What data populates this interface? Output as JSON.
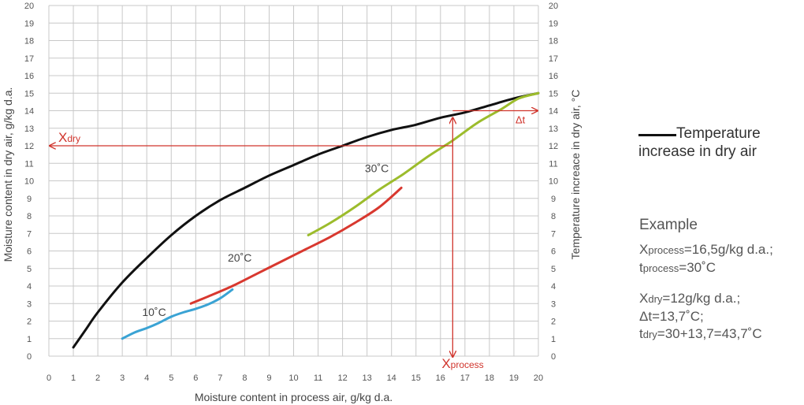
{
  "chart_data": {
    "type": "line",
    "xlabel": "Moisture content in process air, g/kg d.a.",
    "ylabel": "Moisture content in dry air, g/kg d.a.",
    "y2label": "Temperature increace in dry air, °C",
    "xlim": [
      0,
      20
    ],
    "ylim": [
      0,
      20
    ],
    "y2lim": [
      0,
      20
    ],
    "x_ticks": [
      "0",
      "1",
      "2",
      "3",
      "4",
      "5",
      "6",
      "7",
      "8",
      "9",
      "10",
      "11",
      "12",
      "13",
      "14",
      "15",
      "16",
      "17",
      "18",
      "19",
      "20"
    ],
    "y_ticks": [
      "0",
      "1",
      "2",
      "3",
      "4",
      "5",
      "6",
      "7",
      "8",
      "9",
      "10",
      "11",
      "12",
      "13",
      "14",
      "15",
      "16",
      "17",
      "18",
      "19",
      "20"
    ],
    "grid": true,
    "legend_position": "right",
    "series": [
      {
        "name": "Temperature increase in dry air",
        "axis": "right",
        "color": "#111111",
        "points": [
          [
            1,
            0.5
          ],
          [
            1.5,
            1.5
          ],
          [
            2,
            2.5
          ],
          [
            3,
            4.2
          ],
          [
            4,
            5.6
          ],
          [
            5,
            6.9
          ],
          [
            6,
            8.0
          ],
          [
            7,
            8.9
          ],
          [
            8,
            9.6
          ],
          [
            9,
            10.3
          ],
          [
            10,
            10.9
          ],
          [
            11,
            11.5
          ],
          [
            12,
            12.0
          ],
          [
            13,
            12.5
          ],
          [
            14,
            12.9
          ],
          [
            15,
            13.2
          ],
          [
            16,
            13.6
          ],
          [
            17,
            13.9
          ],
          [
            18,
            14.3
          ],
          [
            19,
            14.7
          ],
          [
            20,
            15.0
          ]
        ]
      },
      {
        "name": "10°C",
        "axis": "left",
        "color": "#3aa3d4",
        "points": [
          [
            3,
            1.0
          ],
          [
            3.5,
            1.35
          ],
          [
            4,
            1.6
          ],
          [
            4.5,
            1.9
          ],
          [
            5,
            2.25
          ],
          [
            5.5,
            2.5
          ],
          [
            6,
            2.7
          ],
          [
            6.5,
            2.95
          ],
          [
            7,
            3.3
          ],
          [
            7.5,
            3.8
          ]
        ]
      },
      {
        "name": "20°C",
        "axis": "left",
        "color": "#d8382f",
        "points": [
          [
            5.8,
            3.0
          ],
          [
            6.5,
            3.4
          ],
          [
            7.5,
            4.0
          ],
          [
            8.5,
            4.7
          ],
          [
            9.5,
            5.4
          ],
          [
            10.5,
            6.1
          ],
          [
            11.5,
            6.8
          ],
          [
            12.5,
            7.6
          ],
          [
            13.5,
            8.5
          ],
          [
            14.4,
            9.6
          ]
        ]
      },
      {
        "name": "30°C",
        "axis": "left",
        "color": "#9cbc2c",
        "points": [
          [
            10.6,
            6.9
          ],
          [
            11.5,
            7.6
          ],
          [
            12.5,
            8.5
          ],
          [
            13.5,
            9.5
          ],
          [
            14.5,
            10.4
          ],
          [
            15.5,
            11.4
          ],
          [
            16.5,
            12.3
          ],
          [
            17.5,
            13.3
          ],
          [
            18.5,
            14.1
          ],
          [
            19.2,
            14.7
          ],
          [
            20,
            15.0
          ]
        ]
      }
    ],
    "annotations": [
      {
        "text": "10˚C",
        "x": 4.3,
        "y": 2.3
      },
      {
        "text": "20˚C",
        "x": 7.8,
        "y": 5.4
      },
      {
        "text": "30˚C",
        "x": 13.4,
        "y": 10.5
      }
    ],
    "example_lines": {
      "x_process": 16.5,
      "x_dry": 12,
      "t_process": 30,
      "delta_t_from": 13.7,
      "delta_t_to": 14.0
    },
    "red_labels": {
      "x_dry_main": "X",
      "x_dry_sub": "dry",
      "x_process_main": "X",
      "x_process_sub": "process",
      "delta_t": "Δt"
    },
    "colors": {
      "red": "#d0342c",
      "grid": "#c8c8c8"
    }
  },
  "legend": {
    "line1": "Temperature",
    "line2": "increase in dry air"
  },
  "example": {
    "title": "Example",
    "l1a": "X",
    "l1sub": "process",
    "l1b": "=16,5g/kg d.a.;",
    "l2a": "t",
    "l2sub": "process",
    "l2b": "=30˚C",
    "l3a": "X",
    "l3sub": "dry",
    "l3b": "=12g/kg d.a.;",
    "l4": "Δt=13,7˚C;",
    "l5a": "t",
    "l5sub": "dry",
    "l5b": "=30+13,7=43,7˚C"
  }
}
